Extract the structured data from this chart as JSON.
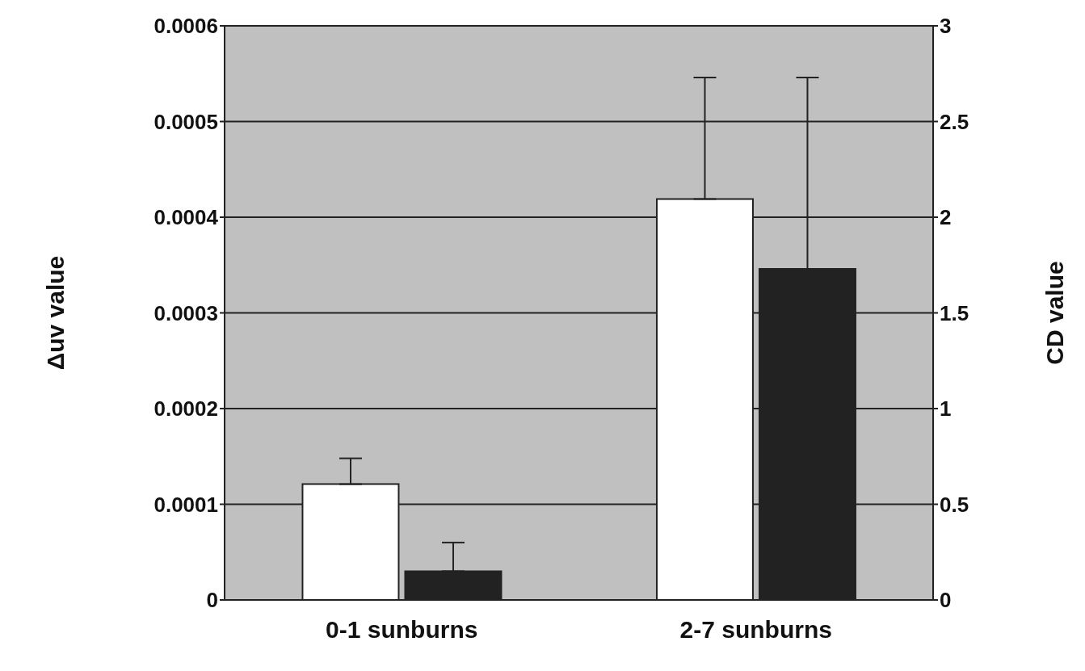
{
  "chart_data": {
    "type": "bar",
    "categories": [
      "0-1 sunburns",
      "2-7 sunburns"
    ],
    "series": [
      {
        "color": "#ffffff",
        "values": [
          0.000121,
          0.000419
        ],
        "errors": [
          [
            0.000121,
            0.000148
          ],
          [
            0.000419,
            0.000546
          ]
        ]
      },
      {
        "color": "#222222",
        "values": [
          0.15,
          1.73
        ],
        "errors": [
          [
            0.15,
            0.3
          ],
          [
            1.73,
            2.73
          ]
        ],
        "axis": "y2"
      }
    ],
    "ylabel": "Δuv value",
    "y2label": "CD value",
    "ylim": [
      0,
      0.0006
    ],
    "yticks": [
      0,
      0.0001,
      0.0002,
      0.0003,
      0.0004,
      0.0005,
      0.0006
    ],
    "y2lim": [
      0,
      3
    ],
    "y2ticks": [
      0,
      0.5,
      1,
      1.5,
      2,
      2.5,
      3
    ],
    "grid": "y",
    "legend": false
  }
}
